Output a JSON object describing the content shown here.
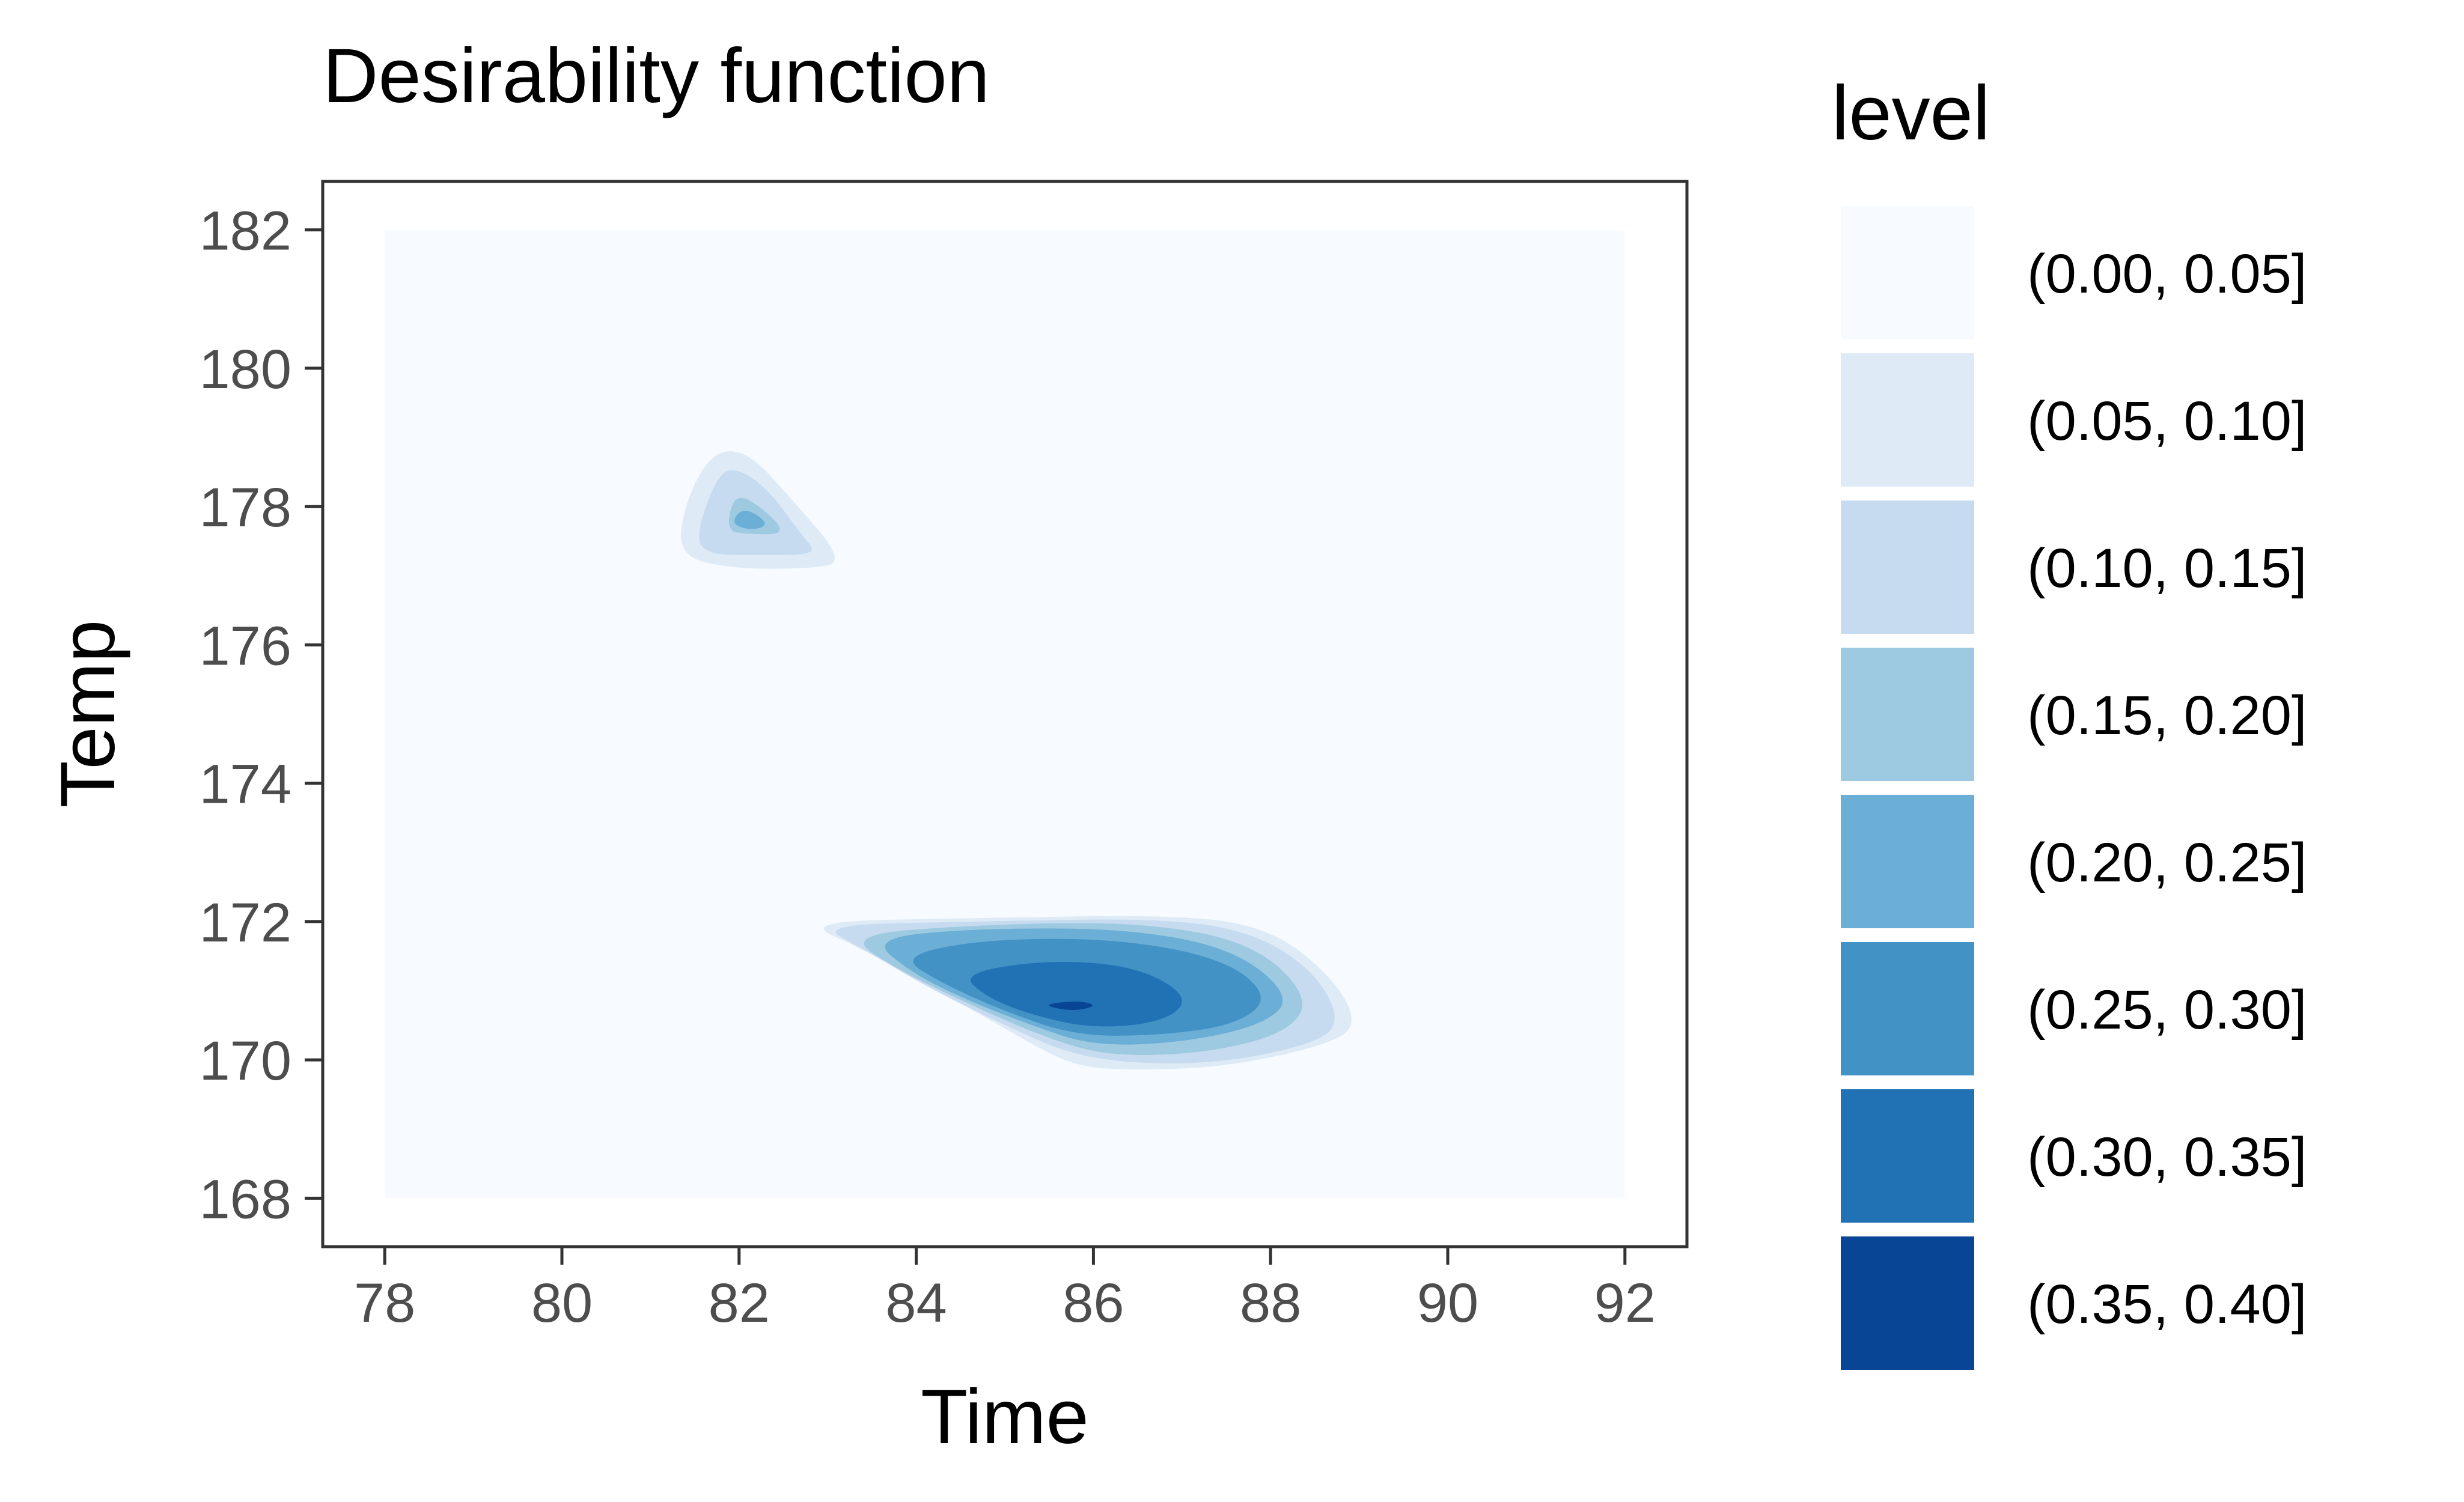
{
  "chart_data": {
    "type": "contour",
    "title": "Desirability function",
    "xlabel": "Time",
    "ylabel": "Temp",
    "x_ticks": [
      78,
      80,
      82,
      84,
      86,
      88,
      90,
      92
    ],
    "y_ticks": [
      168,
      170,
      172,
      174,
      176,
      178,
      180,
      182
    ],
    "xlim": [
      77.3,
      92.7
    ],
    "ylim": [
      167.3,
      182.7
    ],
    "data_extent": {
      "x": [
        78,
        92
      ],
      "y": [
        168,
        182
      ]
    },
    "grid": false,
    "legend": {
      "title": "level",
      "position": "right",
      "levels": [
        {
          "label": "(0.00, 0.05]",
          "color": "#f7fbff"
        },
        {
          "label": "(0.05, 0.10]",
          "color": "#deebf7"
        },
        {
          "label": "(0.10, 0.15]",
          "color": "#c6dbef"
        },
        {
          "label": "(0.15, 0.20]",
          "color": "#9ecae1"
        },
        {
          "label": "(0.20, 0.25]",
          "color": "#6baed6"
        },
        {
          "label": "(0.25, 0.30]",
          "color": "#4292c6"
        },
        {
          "label": "(0.30, 0.35]",
          "color": "#2171b5"
        },
        {
          "label": "(0.35, 0.40]",
          "color": "#084594"
        }
      ]
    },
    "peaks": [
      {
        "time": 85.8,
        "temp": 170.8,
        "max_level": "(0.35, 0.40]"
      },
      {
        "time": 82.2,
        "temp": 177.8,
        "max_level": "(0.15, 0.20]"
      }
    ]
  }
}
